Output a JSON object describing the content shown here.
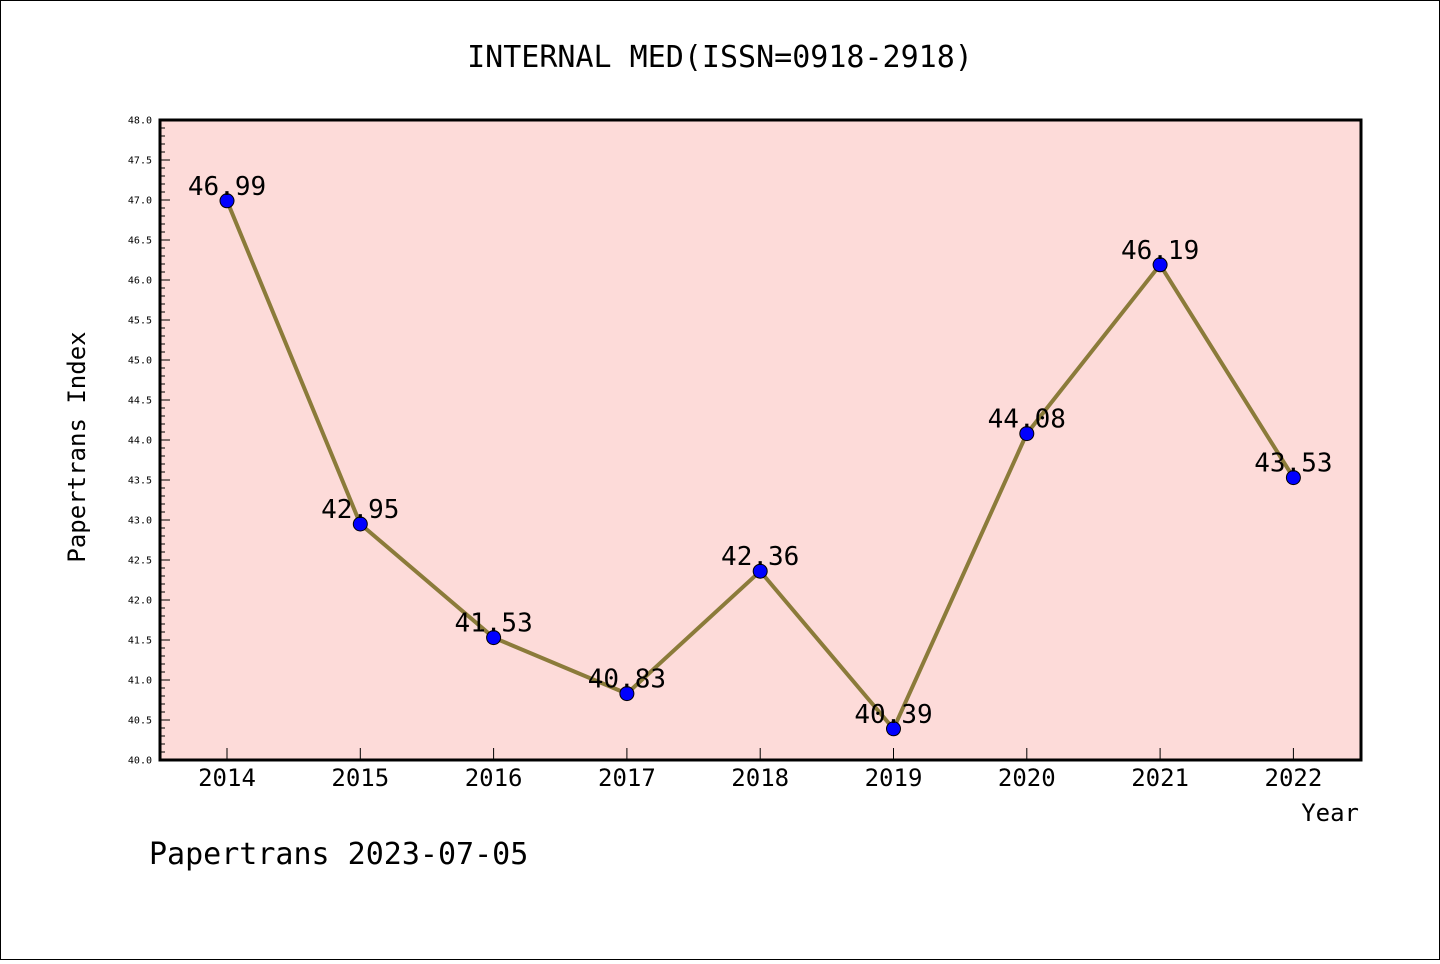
{
  "chart_data": {
    "type": "line",
    "title": "INTERNAL MED(ISSN=0918-2918)",
    "xlabel": "Year",
    "ylabel": "Papertrans Index",
    "footer": "Papertrans 2023-07-05",
    "categories": [
      "2014",
      "2015",
      "2016",
      "2017",
      "2018",
      "2019",
      "2020",
      "2021",
      "2022"
    ],
    "values": [
      46.99,
      42.95,
      41.53,
      40.83,
      42.36,
      40.39,
      44.08,
      46.19,
      43.53
    ],
    "data_labels": [
      "46.99",
      "42.95",
      "41.53",
      "40.83",
      "42.36",
      "40.39",
      "44.08",
      "46.19",
      "43.53"
    ],
    "ylim": [
      40.0,
      48.0
    ],
    "yticks": [
      "40.0",
      "40.5",
      "41.0",
      "41.5",
      "42.0",
      "42.5",
      "43.0",
      "43.5",
      "44.0",
      "44.5",
      "45.0",
      "45.5",
      "46.0",
      "46.5",
      "47.0",
      "47.5",
      "48.0"
    ],
    "grid": false,
    "colors": {
      "plot_background": "#fddbd9",
      "line": "#8b7b3a",
      "marker": "#0000ff"
    }
  }
}
